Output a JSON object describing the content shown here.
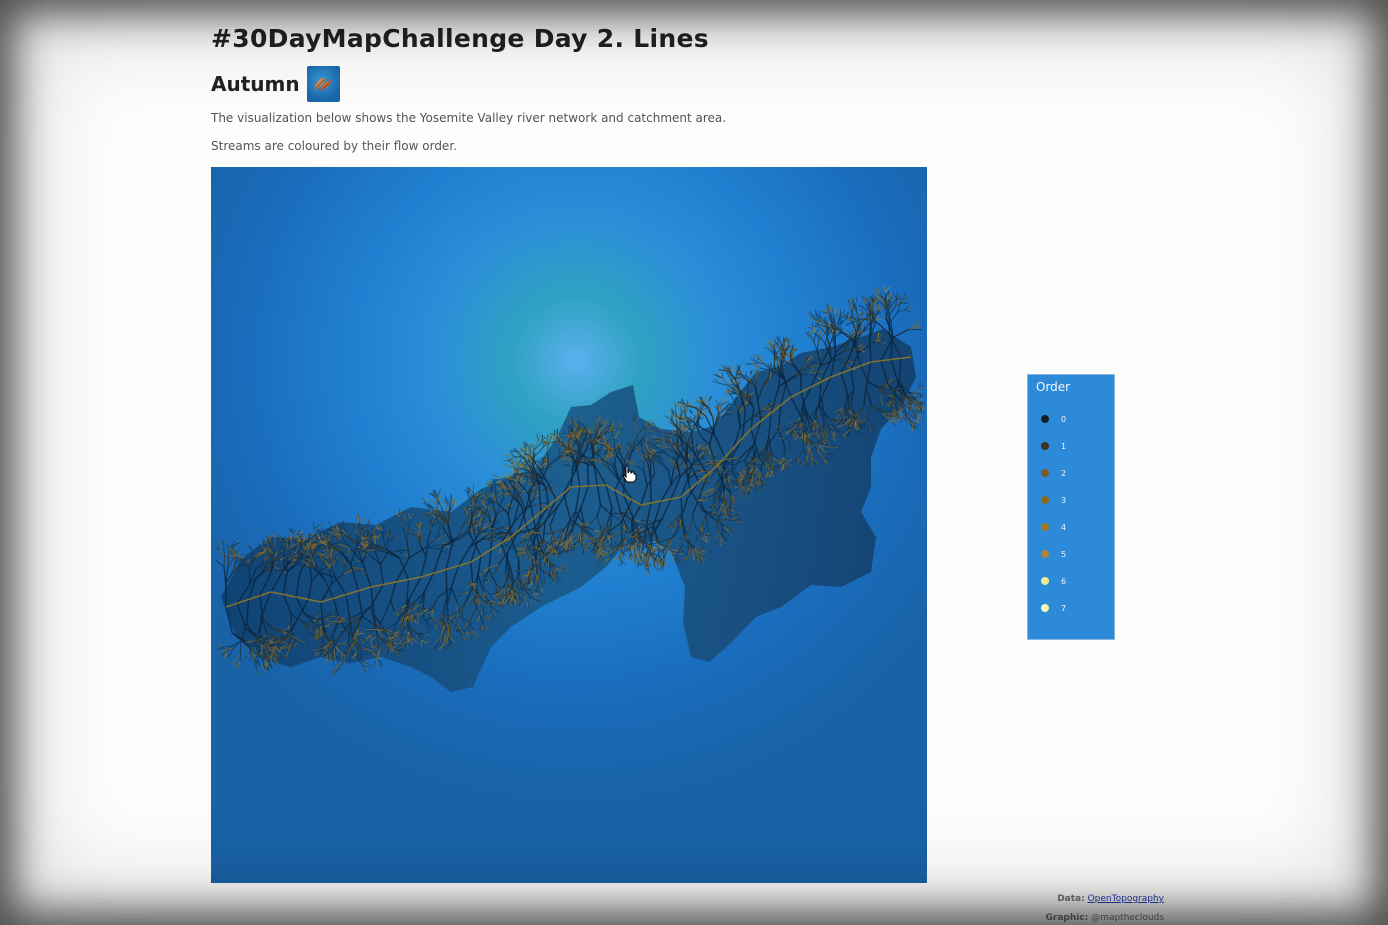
{
  "header": {
    "title": "#30DayMapChallenge Day 2. Lines",
    "subtitle": "Autumn",
    "thumbnail_icon": "leaf-thumbnail-icon"
  },
  "description": {
    "line1": "The visualization below shows the Yosemite Valley river network and catchment area.",
    "line2": "Streams are coloured by their flow order."
  },
  "map": {
    "subject": "Yosemite Valley river network and catchment area",
    "background_color": "#1a6cbc",
    "cursor_icon": "hand-pointer-icon"
  },
  "legend": {
    "title": "Order",
    "items": [
      {
        "label": "0",
        "color": "#141c24"
      },
      {
        "label": "1",
        "color": "#3a3320"
      },
      {
        "label": "2",
        "color": "#7a5a26"
      },
      {
        "label": "3",
        "color": "#8a6a1e"
      },
      {
        "label": "4",
        "color": "#9a7a22"
      },
      {
        "label": "5",
        "color": "#a8863a"
      },
      {
        "label": "6",
        "color": "#f2ec90"
      },
      {
        "label": "7",
        "color": "#f8f4b4"
      }
    ]
  },
  "credits": {
    "data_label": "Data:",
    "data_link": "OpenTopography",
    "graphic_label": "Graphic:",
    "graphic_value": "@mapthe​clouds"
  }
}
